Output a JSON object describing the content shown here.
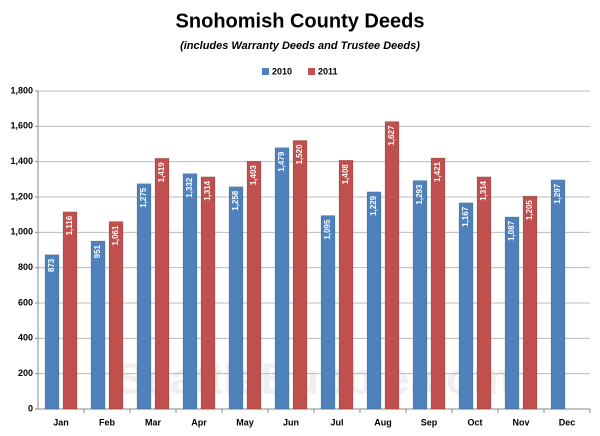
{
  "chart_data": {
    "type": "bar",
    "title": "Snohomish County Deeds",
    "subtitle": "(includes Warranty Deeds and Trustee Deeds)",
    "watermark": "SeattleBubble.com",
    "categories": [
      "Jan",
      "Feb",
      "Mar",
      "Apr",
      "May",
      "Jun",
      "Jul",
      "Aug",
      "Sep",
      "Oct",
      "Nov",
      "Dec"
    ],
    "series": [
      {
        "name": "2010",
        "color": "#4f81bd",
        "values": [
          873,
          951,
          1275,
          1332,
          1258,
          1479,
          1095,
          1229,
          1293,
          1167,
          1087,
          1297
        ],
        "value_labels": [
          "873",
          "951",
          "1,275",
          "1,332",
          "1,258",
          "1,479",
          "1,095",
          "1,229",
          "1,293",
          "1,167",
          "1,087",
          "1,297"
        ]
      },
      {
        "name": "2011",
        "color": "#c0504d",
        "values": [
          1116,
          1061,
          1419,
          1314,
          1403,
          1520,
          1408,
          1627,
          1421,
          1314,
          1205,
          null
        ],
        "value_labels": [
          "1,116",
          "1,061",
          "1,419",
          "1,314",
          "1,403",
          "1,520",
          "1,408",
          "1,627",
          "1,421",
          "1,314",
          "1,205",
          null
        ]
      }
    ],
    "ylim": [
      0,
      1800
    ],
    "yticks": [
      0,
      200,
      400,
      600,
      800,
      {
        "value": 1000,
        "label": "1,000"
      },
      {
        "value": 1200,
        "label": "1,200"
      },
      {
        "value": 1400,
        "label": "1,400"
      },
      {
        "value": 1600,
        "label": "1,600"
      },
      {
        "value": 1800,
        "label": "1,800"
      }
    ],
    "grid": true,
    "legend": "top"
  }
}
